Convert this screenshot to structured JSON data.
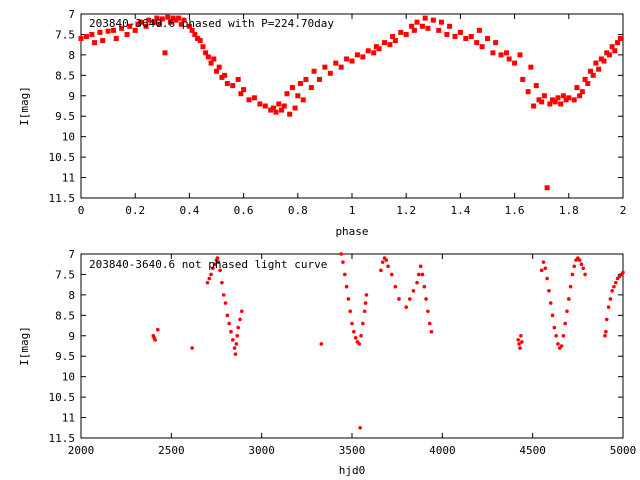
{
  "chart_data": [
    {
      "type": "scatter",
      "title": "203840-3640.6 phased with P=224.70day",
      "xlabel": "phase",
      "ylabel": "I[mag]",
      "xlim": [
        0,
        2
      ],
      "ylim": [
        11.5,
        7
      ],
      "y_inverted": true,
      "grid": false,
      "marker_color": "#ff0000",
      "xticks": [
        "0",
        "0.2",
        "0.4",
        "0.6",
        "0.8",
        "1",
        "1.2",
        "1.4",
        "1.6",
        "1.8",
        "2"
      ],
      "yticks": [
        "7",
        "7.5",
        "8",
        "8.5",
        "9",
        "9.5",
        "10",
        "10.5",
        "11",
        "11.5"
      ],
      "points": [
        [
          0.0,
          7.6
        ],
        [
          0.02,
          7.55
        ],
        [
          0.04,
          7.5
        ],
        [
          0.05,
          7.7
        ],
        [
          0.07,
          7.45
        ],
        [
          0.08,
          7.65
        ],
        [
          0.1,
          7.42
        ],
        [
          0.12,
          7.4
        ],
        [
          0.13,
          7.6
        ],
        [
          0.15,
          7.35
        ],
        [
          0.17,
          7.5
        ],
        [
          0.18,
          7.3
        ],
        [
          0.2,
          7.4
        ],
        [
          0.21,
          7.25
        ],
        [
          0.22,
          7.2
        ],
        [
          0.24,
          7.3
        ],
        [
          0.25,
          7.15
        ],
        [
          0.27,
          7.2
        ],
        [
          0.28,
          7.1
        ],
        [
          0.29,
          7.25
        ],
        [
          0.3,
          7.12
        ],
        [
          0.31,
          7.95
        ],
        [
          0.32,
          7.08
        ],
        [
          0.33,
          7.2
        ],
        [
          0.34,
          7.1
        ],
        [
          0.35,
          7.15
        ],
        [
          0.36,
          7.1
        ],
        [
          0.37,
          7.25
        ],
        [
          0.38,
          7.15
        ],
        [
          0.4,
          7.3
        ],
        [
          0.41,
          7.4
        ],
        [
          0.42,
          7.5
        ],
        [
          0.43,
          7.6
        ],
        [
          0.44,
          7.65
        ],
        [
          0.45,
          7.8
        ],
        [
          0.46,
          7.95
        ],
        [
          0.47,
          8.05
        ],
        [
          0.48,
          8.2
        ],
        [
          0.49,
          8.1
        ],
        [
          0.5,
          8.4
        ],
        [
          0.51,
          8.3
        ],
        [
          0.52,
          8.55
        ],
        [
          0.53,
          8.5
        ],
        [
          0.54,
          8.7
        ],
        [
          0.56,
          8.75
        ],
        [
          0.58,
          8.6
        ],
        [
          0.59,
          8.95
        ],
        [
          0.6,
          8.85
        ],
        [
          0.62,
          9.1
        ],
        [
          0.64,
          9.05
        ],
        [
          0.66,
          9.2
        ],
        [
          0.68,
          9.25
        ],
        [
          0.7,
          9.35
        ],
        [
          0.71,
          9.3
        ],
        [
          0.72,
          9.4
        ],
        [
          0.73,
          9.2
        ],
        [
          0.74,
          9.35
        ],
        [
          0.75,
          9.25
        ],
        [
          0.76,
          8.95
        ],
        [
          0.77,
          9.45
        ],
        [
          0.78,
          8.8
        ],
        [
          0.79,
          9.3
        ],
        [
          0.8,
          9.0
        ],
        [
          0.81,
          8.7
        ],
        [
          0.82,
          9.1
        ],
        [
          0.83,
          8.6
        ],
        [
          0.85,
          8.8
        ],
        [
          0.86,
          8.4
        ],
        [
          0.88,
          8.6
        ],
        [
          0.9,
          8.3
        ],
        [
          0.92,
          8.45
        ],
        [
          0.94,
          8.2
        ],
        [
          0.96,
          8.3
        ],
        [
          0.98,
          8.1
        ],
        [
          1.0,
          8.15
        ],
        [
          1.02,
          8.0
        ],
        [
          1.04,
          8.05
        ],
        [
          1.06,
          7.9
        ],
        [
          1.08,
          7.95
        ],
        [
          1.09,
          7.8
        ],
        [
          1.1,
          7.85
        ],
        [
          1.12,
          7.7
        ],
        [
          1.14,
          7.75
        ],
        [
          1.15,
          7.55
        ],
        [
          1.16,
          7.65
        ],
        [
          1.18,
          7.45
        ],
        [
          1.2,
          7.5
        ],
        [
          1.22,
          7.3
        ],
        [
          1.23,
          7.4
        ],
        [
          1.24,
          7.2
        ],
        [
          1.26,
          7.3
        ],
        [
          1.27,
          7.1
        ],
        [
          1.28,
          7.35
        ],
        [
          1.3,
          7.15
        ],
        [
          1.32,
          7.4
        ],
        [
          1.33,
          7.2
        ],
        [
          1.35,
          7.5
        ],
        [
          1.36,
          7.3
        ],
        [
          1.38,
          7.55
        ],
        [
          1.4,
          7.45
        ],
        [
          1.42,
          7.6
        ],
        [
          1.44,
          7.55
        ],
        [
          1.46,
          7.7
        ],
        [
          1.47,
          7.4
        ],
        [
          1.48,
          7.8
        ],
        [
          1.5,
          7.6
        ],
        [
          1.52,
          7.95
        ],
        [
          1.53,
          7.7
        ],
        [
          1.55,
          8.0
        ],
        [
          1.57,
          7.95
        ],
        [
          1.58,
          8.1
        ],
        [
          1.6,
          8.2
        ],
        [
          1.62,
          8.0
        ],
        [
          1.63,
          8.6
        ],
        [
          1.65,
          8.9
        ],
        [
          1.66,
          8.3
        ],
        [
          1.67,
          9.25
        ],
        [
          1.68,
          8.75
        ],
        [
          1.69,
          9.1
        ],
        [
          1.7,
          9.15
        ],
        [
          1.71,
          9.0
        ],
        [
          1.72,
          11.25
        ],
        [
          1.73,
          9.2
        ],
        [
          1.74,
          9.1
        ],
        [
          1.75,
          9.15
        ],
        [
          1.76,
          9.05
        ],
        [
          1.77,
          9.2
        ],
        [
          1.78,
          9.0
        ],
        [
          1.79,
          9.1
        ],
        [
          1.8,
          9.05
        ],
        [
          1.82,
          9.1
        ],
        [
          1.83,
          8.8
        ],
        [
          1.84,
          9.0
        ],
        [
          1.85,
          8.9
        ],
        [
          1.86,
          8.6
        ],
        [
          1.87,
          8.7
        ],
        [
          1.88,
          8.4
        ],
        [
          1.89,
          8.5
        ],
        [
          1.9,
          8.2
        ],
        [
          1.91,
          8.35
        ],
        [
          1.92,
          8.1
        ],
        [
          1.93,
          8.15
        ],
        [
          1.94,
          7.95
        ],
        [
          1.95,
          8.0
        ],
        [
          1.96,
          7.8
        ],
        [
          1.97,
          7.9
        ],
        [
          1.98,
          7.7
        ],
        [
          1.99,
          7.6
        ]
      ]
    },
    {
      "type": "scatter",
      "title": "203840-3640.6 not phased light curve",
      "xlabel": "hjd0",
      "ylabel": "I[mag]",
      "xlim": [
        2000,
        5000
      ],
      "ylim": [
        11.5,
        7
      ],
      "y_inverted": true,
      "grid": false,
      "marker_color": "#ff0000",
      "xticks": [
        "2000",
        "2500",
        "3000",
        "3500",
        "4000",
        "4500",
        "5000"
      ],
      "yticks": [
        "7",
        "7.5",
        "8",
        "8.5",
        "9",
        "9.5",
        "10",
        "10.5",
        "11",
        "11.5"
      ],
      "points": [
        [
          2400,
          9.0
        ],
        [
          2405,
          9.05
        ],
        [
          2410,
          9.1
        ],
        [
          2425,
          8.85
        ],
        [
          2615,
          9.3
        ],
        [
          2700,
          7.7
        ],
        [
          2710,
          7.6
        ],
        [
          2720,
          7.5
        ],
        [
          2730,
          7.35
        ],
        [
          2740,
          7.25
        ],
        [
          2750,
          7.15
        ],
        [
          2755,
          7.1
        ],
        [
          2760,
          7.2
        ],
        [
          2770,
          7.4
        ],
        [
          2780,
          7.7
        ],
        [
          2790,
          8.0
        ],
        [
          2800,
          8.2
        ],
        [
          2810,
          8.5
        ],
        [
          2820,
          8.7
        ],
        [
          2830,
          8.9
        ],
        [
          2840,
          9.1
        ],
        [
          2850,
          9.3
        ],
        [
          2855,
          9.45
        ],
        [
          2860,
          9.2
        ],
        [
          2865,
          9.0
        ],
        [
          2870,
          8.8
        ],
        [
          2880,
          8.6
        ],
        [
          2890,
          8.4
        ],
        [
          3330,
          9.2
        ],
        [
          3440,
          7.0
        ],
        [
          3450,
          7.2
        ],
        [
          3460,
          7.5
        ],
        [
          3470,
          7.8
        ],
        [
          3480,
          8.1
        ],
        [
          3490,
          8.4
        ],
        [
          3500,
          8.7
        ],
        [
          3510,
          8.9
        ],
        [
          3520,
          9.05
        ],
        [
          3530,
          9.15
        ],
        [
          3540,
          9.2
        ],
        [
          3545,
          11.25
        ],
        [
          3550,
          9.0
        ],
        [
          3560,
          8.7
        ],
        [
          3570,
          8.4
        ],
        [
          3575,
          8.2
        ],
        [
          3580,
          8.0
        ],
        [
          3660,
          7.4
        ],
        [
          3670,
          7.2
        ],
        [
          3680,
          7.1
        ],
        [
          3690,
          7.15
        ],
        [
          3700,
          7.3
        ],
        [
          3720,
          7.5
        ],
        [
          3740,
          7.8
        ],
        [
          3760,
          8.1
        ],
        [
          3800,
          8.3
        ],
        [
          3820,
          8.1
        ],
        [
          3840,
          7.9
        ],
        [
          3860,
          7.7
        ],
        [
          3870,
          7.5
        ],
        [
          3880,
          7.3
        ],
        [
          3890,
          7.5
        ],
        [
          3900,
          7.8
        ],
        [
          3910,
          8.1
        ],
        [
          3920,
          8.4
        ],
        [
          3930,
          8.7
        ],
        [
          3940,
          8.9
        ],
        [
          4420,
          9.1
        ],
        [
          4425,
          9.2
        ],
        [
          4430,
          9.3
        ],
        [
          4435,
          9.0
        ],
        [
          4440,
          9.15
        ],
        [
          4550,
          7.4
        ],
        [
          4560,
          7.2
        ],
        [
          4570,
          7.35
        ],
        [
          4580,
          7.6
        ],
        [
          4590,
          7.9
        ],
        [
          4600,
          8.2
        ],
        [
          4610,
          8.5
        ],
        [
          4620,
          8.8
        ],
        [
          4630,
          9.0
        ],
        [
          4640,
          9.2
        ],
        [
          4650,
          9.3
        ],
        [
          4660,
          9.25
        ],
        [
          4670,
          9.0
        ],
        [
          4680,
          8.7
        ],
        [
          4690,
          8.4
        ],
        [
          4700,
          8.1
        ],
        [
          4710,
          7.8
        ],
        [
          4720,
          7.5
        ],
        [
          4730,
          7.3
        ],
        [
          4740,
          7.15
        ],
        [
          4750,
          7.1
        ],
        [
          4760,
          7.15
        ],
        [
          4770,
          7.25
        ],
        [
          4780,
          7.35
        ],
        [
          4790,
          7.5
        ],
        [
          4900,
          9.0
        ],
        [
          4905,
          8.9
        ],
        [
          4910,
          8.6
        ],
        [
          4920,
          8.3
        ],
        [
          4930,
          8.1
        ],
        [
          4940,
          7.9
        ],
        [
          4950,
          7.8
        ],
        [
          4960,
          7.7
        ],
        [
          4970,
          7.6
        ],
        [
          4980,
          7.55
        ],
        [
          4990,
          7.5
        ],
        [
          5000,
          7.45
        ]
      ]
    }
  ]
}
